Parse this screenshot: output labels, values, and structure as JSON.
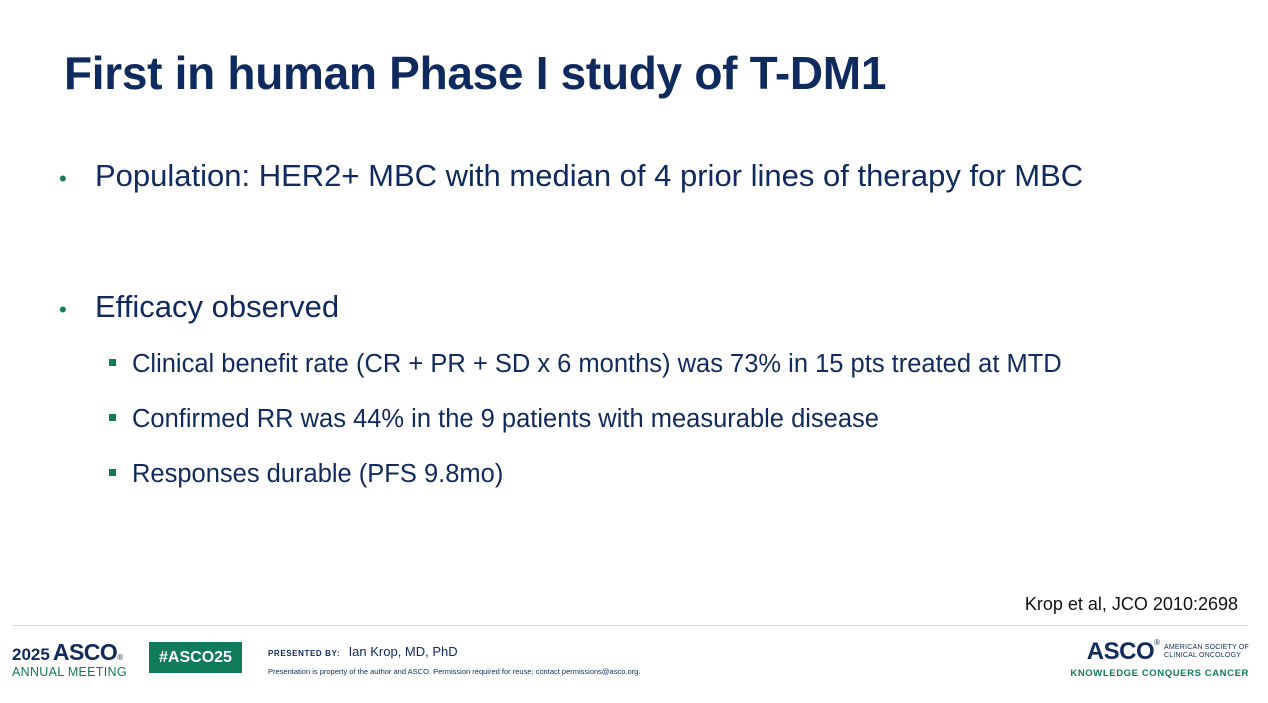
{
  "slide": {
    "title": "First in human Phase I study of T-DM1",
    "bullets": [
      {
        "text": "Population: HER2+ MBC with median of 4 prior lines of therapy for MBC"
      },
      {
        "text": "Efficacy observed"
      }
    ],
    "sub_bullets": [
      "Clinical benefit rate (CR + PR + SD x 6 months) was 73% in 15 pts treated at MTD",
      "Confirmed RR was 44% in the 9 patients with measurable disease",
      "Responses durable (PFS 9.8mo)"
    ],
    "citation": "Krop et al, JCO 2010:2698"
  },
  "footer": {
    "year": "2025",
    "meeting_brand": "ASCO",
    "meeting_sub": "ANNUAL MEETING",
    "hashtag": "#ASCO25",
    "presented_by_label": "PRESENTED BY:",
    "presenter": "Ian Krop, MD, PhD",
    "notice": "Presentation is property of the author and ASCO. Permission required for reuse; contact permissions@asco.org.",
    "org_brand": "ASCO",
    "org_line1": "AMERICAN SOCIETY OF",
    "org_line2": "CLINICAL ONCOLOGY",
    "tagline": "KNOWLEDGE CONQUERS CANCER",
    "registered_mark": "®"
  },
  "colors": {
    "navy": "#0f2a5e",
    "green": "#0f7a5c"
  },
  "icons": {
    "bullet": "•"
  }
}
